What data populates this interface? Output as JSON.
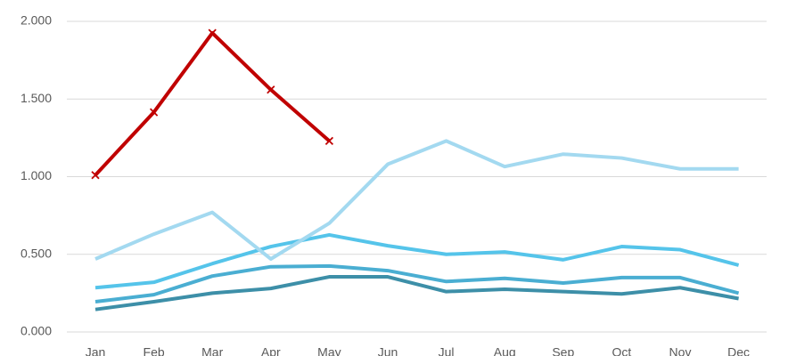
{
  "chart_data": {
    "type": "line",
    "categories": [
      "Jan",
      "Feb",
      "Mar",
      "Apr",
      "May",
      "Jun",
      "Jul",
      "Aug",
      "Sep",
      "Oct",
      "Nov",
      "Dec"
    ],
    "series": [
      {
        "color": "#3d8fa8",
        "values": [
          0.145,
          0.195,
          0.25,
          0.28,
          0.355,
          0.355,
          0.26,
          0.275,
          0.26,
          0.245,
          0.285,
          0.215
        ]
      },
      {
        "color": "#4aaed2",
        "values": [
          0.195,
          0.24,
          0.36,
          0.42,
          0.425,
          0.395,
          0.325,
          0.345,
          0.315,
          0.35,
          0.35,
          0.25
        ]
      },
      {
        "color": "#55c4ea",
        "values": [
          0.285,
          0.32,
          0.44,
          0.55,
          0.625,
          0.555,
          0.5,
          0.515,
          0.465,
          0.55,
          0.53,
          0.43
        ]
      },
      {
        "color": "#a3d9f0",
        "values": [
          0.47,
          0.63,
          0.77,
          0.47,
          0.7,
          1.08,
          1.23,
          1.065,
          1.145,
          1.12,
          1.05,
          1.05
        ]
      },
      {
        "color": "#c00000",
        "marker": "x",
        "values": [
          1.01,
          1.415,
          1.925,
          1.56,
          1.23,
          null,
          null,
          null,
          null,
          null,
          null,
          null
        ]
      }
    ],
    "ylim": [
      0,
      2
    ],
    "yticks": [
      {
        "value": 0,
        "label": "0.000"
      },
      {
        "value": 0.5,
        "label": "0.500"
      },
      {
        "value": 1,
        "label": "1.000"
      },
      {
        "value": 1.5,
        "label": "1.500"
      },
      {
        "value": 2,
        "label": "2.000"
      }
    ],
    "grid": true
  }
}
